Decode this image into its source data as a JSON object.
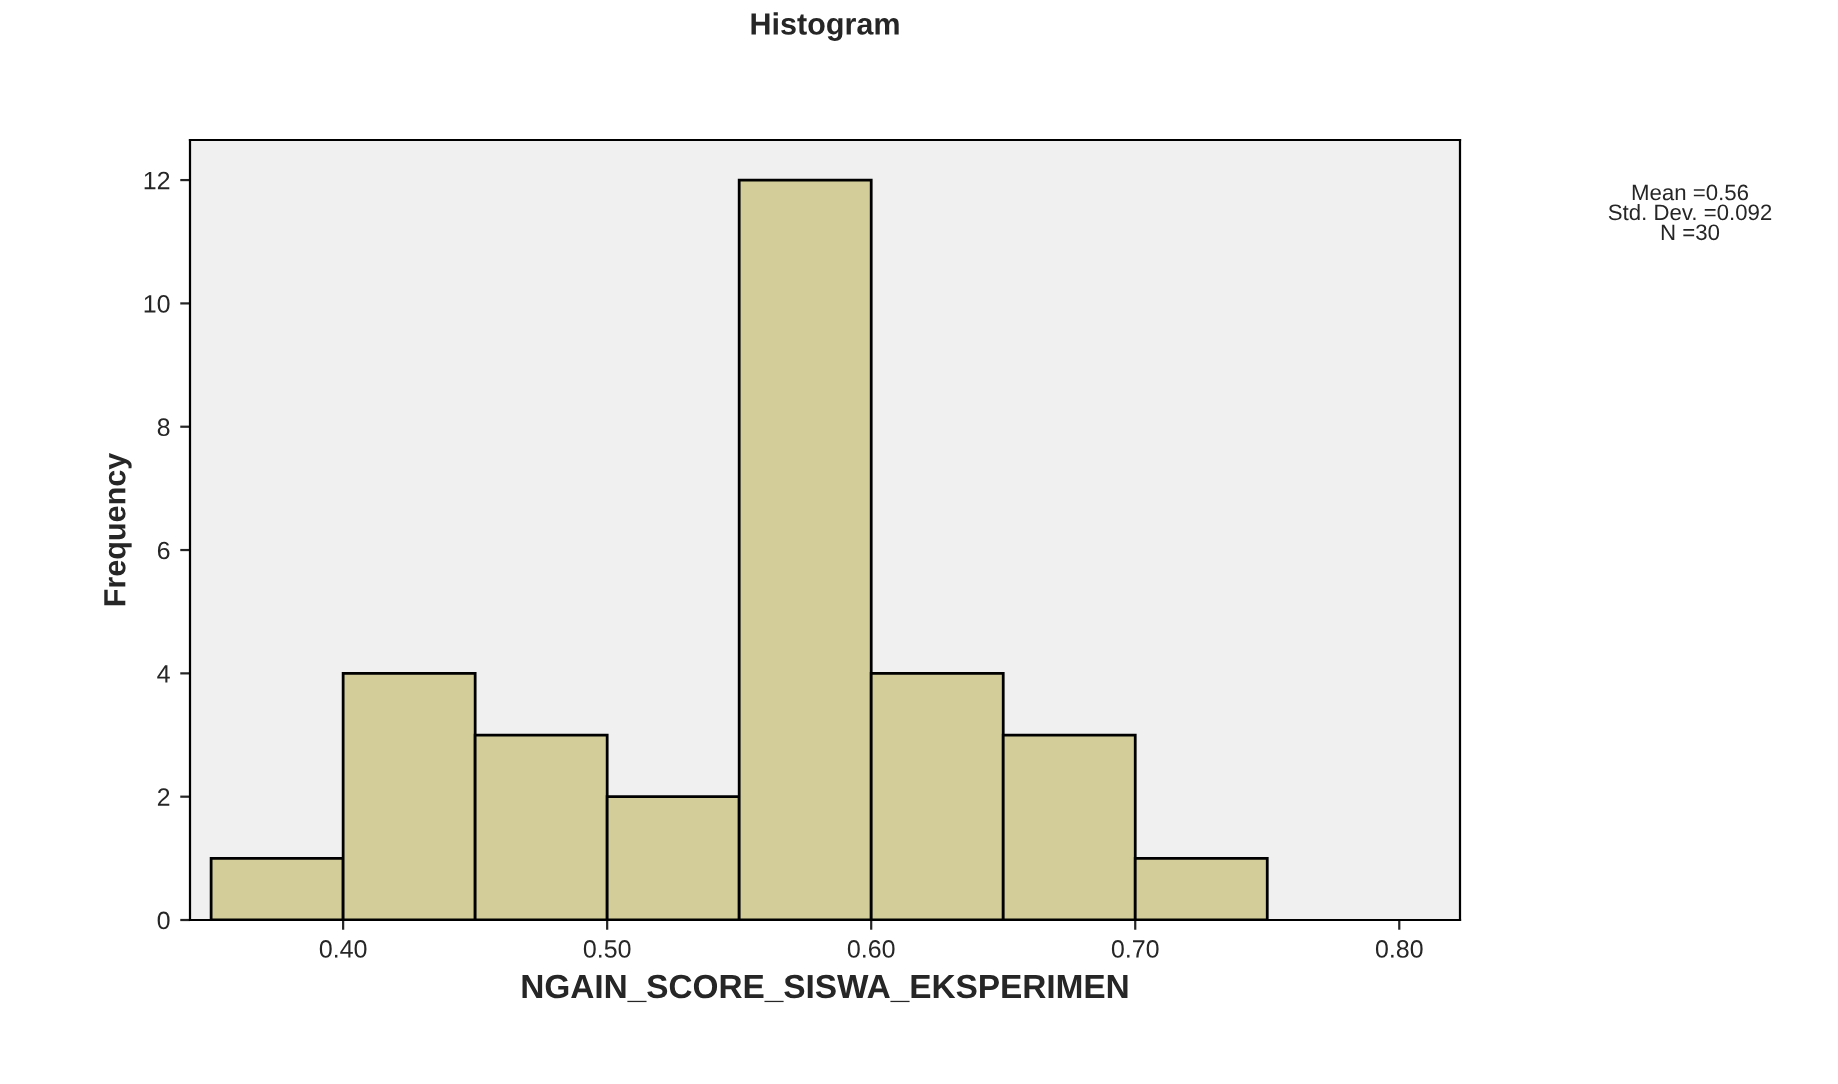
{
  "chart_data": {
    "type": "histogram",
    "title": "Histogram",
    "xlabel": "NGAIN_SCORE_SISWA_EKSPERIMEN",
    "ylabel": "Frequency",
    "bins": [
      0.35,
      0.4,
      0.45,
      0.5,
      0.55,
      0.6,
      0.65,
      0.7,
      0.75
    ],
    "values": [
      1,
      4,
      3,
      2,
      12,
      4,
      3,
      1
    ],
    "color": "#d3ce99",
    "xlim": [
      0.342,
      0.823
    ],
    "xticks": [
      {
        "value": 0.4,
        "label": "0.40"
      },
      {
        "value": 0.5,
        "label": "0.50"
      },
      {
        "value": 0.6,
        "label": "0.60"
      },
      {
        "value": 0.7,
        "label": "0.70"
      },
      {
        "value": 0.8,
        "label": "0.80"
      }
    ],
    "ylim": [
      0,
      12.65
    ],
    "yticks": [
      0,
      2,
      4,
      6,
      8,
      10,
      12
    ],
    "grid": false,
    "annotations": [
      "Mean =0.56\nStd. Dev. =0.092\nN =30"
    ]
  }
}
